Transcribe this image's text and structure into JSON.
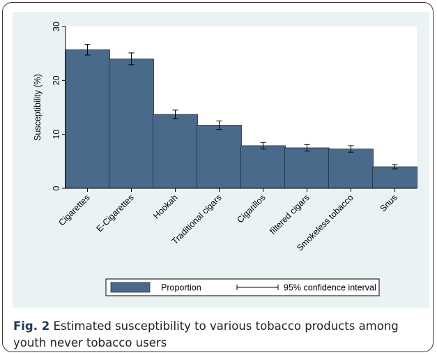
{
  "colors": {
    "bar_fill": "#4a6a8b",
    "bar_stroke": "#1f2f3f",
    "panel_background": "#eaf2f3",
    "caption_label": "#1f3b5a"
  },
  "chart_data": {
    "type": "bar",
    "categories": [
      "Cigarettes",
      "E-Cigarettes",
      "Hookah",
      "Traditional cigars",
      "Cigarillos",
      "filtered cigars",
      "Smokeless tobacco",
      "Snus"
    ],
    "series": [
      {
        "name": "Proportion",
        "values": [
          25.7,
          24.0,
          13.7,
          11.7,
          7.9,
          7.5,
          7.3,
          4.0
        ],
        "ci_lower": [
          24.7,
          22.9,
          12.9,
          10.9,
          7.3,
          6.9,
          6.7,
          3.6
        ],
        "ci_upper": [
          26.7,
          25.1,
          14.5,
          12.5,
          8.5,
          8.1,
          7.9,
          4.4
        ]
      }
    ],
    "ylabel": "Susceptibility (%)",
    "xlabel": "",
    "ylim": [
      0,
      30
    ],
    "yticks": [
      0,
      10,
      20,
      30
    ],
    "legend": {
      "position": "bottom",
      "bar_label": "Proportion",
      "ci_label": "95% confidence interval"
    },
    "grid": false
  },
  "caption": {
    "label": "Fig. 2",
    "text": " Estimated susceptibility to various tobacco products among youth never tobacco users"
  }
}
